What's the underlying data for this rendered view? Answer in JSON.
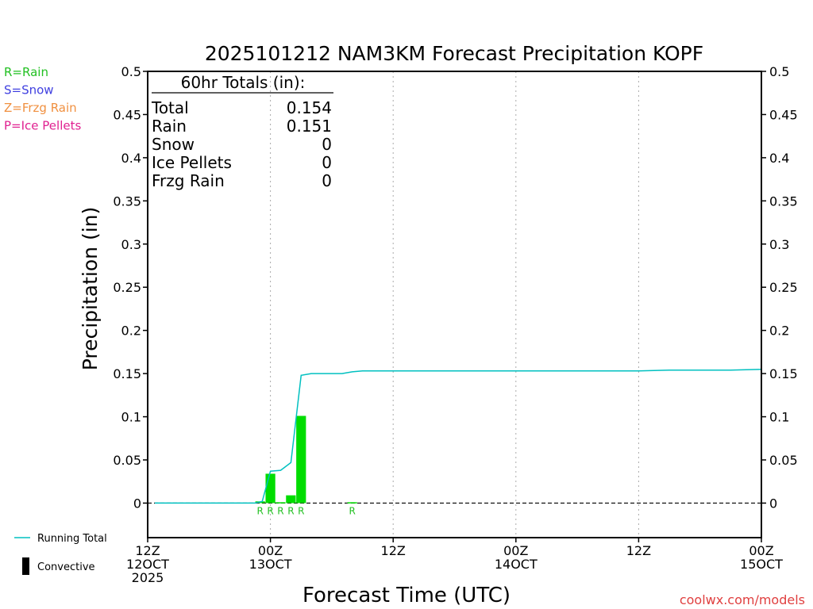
{
  "chart_data": {
    "type": "bar",
    "title": "2025101212 NAM3KM Forecast Precipitation KOPF",
    "xlabel": "Forecast Time (UTC)",
    "ylabel": "Precipitation (in)",
    "ylim": [
      -0.04,
      0.5
    ],
    "xlim_hours": [
      0,
      60
    ],
    "grid": "vertical dotted",
    "y_ticks": [
      {
        "v": 0.5,
        "label": "0.5"
      },
      {
        "v": 0.45,
        "label": "0.45"
      },
      {
        "v": 0.4,
        "label": "0.4"
      },
      {
        "v": 0.35,
        "label": "0.35"
      },
      {
        "v": 0.3,
        "label": "0.3"
      },
      {
        "v": 0.25,
        "label": "0.25"
      },
      {
        "v": 0.2,
        "label": "0.2"
      },
      {
        "v": 0.15,
        "label": "0.15"
      },
      {
        "v": 0.1,
        "label": "0.1"
      },
      {
        "v": 0.05,
        "label": "0.05"
      },
      {
        "v": 0,
        "label": "0"
      }
    ],
    "x_ticks": [
      {
        "h": 0,
        "lines": [
          "12Z",
          "12OCT",
          "2025"
        ]
      },
      {
        "h": 12,
        "lines": [
          "00Z",
          "13OCT"
        ]
      },
      {
        "h": 24,
        "lines": [
          "12Z"
        ]
      },
      {
        "h": 36,
        "lines": [
          "00Z",
          "14OCT"
        ]
      },
      {
        "h": 48,
        "lines": [
          "12Z"
        ]
      },
      {
        "h": 60,
        "lines": [
          "00Z",
          "15OCT"
        ]
      }
    ],
    "bars": [
      {
        "h": 11,
        "v": 0.002,
        "type": "R"
      },
      {
        "h": 12,
        "v": 0.034,
        "type": "R"
      },
      {
        "h": 13,
        "v": 0.001,
        "type": "R"
      },
      {
        "h": 14,
        "v": 0.009,
        "type": "R"
      },
      {
        "h": 15,
        "v": 0.101,
        "type": "R"
      },
      {
        "h": 20,
        "v": 0.001,
        "type": "R"
      }
    ],
    "running_total": {
      "name": "Running Total",
      "color": "#00c0c0",
      "points": [
        [
          0.7,
          0
        ],
        [
          10.5,
          0
        ],
        [
          11.2,
          0.002
        ],
        [
          12,
          0.037
        ],
        [
          13,
          0.038
        ],
        [
          14,
          0.047
        ],
        [
          15,
          0.148
        ],
        [
          16,
          0.15
        ],
        [
          19,
          0.15
        ],
        [
          20,
          0.152
        ],
        [
          21,
          0.153
        ],
        [
          30,
          0.153
        ],
        [
          40,
          0.153
        ],
        [
          48,
          0.153
        ],
        [
          51,
          0.154
        ],
        [
          57,
          0.154
        ],
        [
          60,
          0.155
        ]
      ]
    },
    "totals_box": {
      "heading": "60hr Totals (in):",
      "rows": [
        {
          "label": "Total",
          "value": "0.154"
        },
        {
          "label": "Rain",
          "value": "0.151"
        },
        {
          "label": "Snow",
          "value": "0"
        },
        {
          "label": "Ice Pellets",
          "value": "0"
        },
        {
          "label": "Frzg Rain",
          "value": "0"
        }
      ]
    },
    "type_legend": [
      {
        "text": "R=Rain",
        "color": "#22c022"
      },
      {
        "text": "S=Snow",
        "color": "#4040e0"
      },
      {
        "text": "Z=Frzg Rain",
        "color": "#f09040"
      },
      {
        "text": "P=Ice Pellets",
        "color": "#e02090"
      }
    ],
    "line_legend": [
      {
        "text": "Running Total",
        "color": "#00c0c0",
        "kind": "line"
      },
      {
        "text": "Convective",
        "color": "#000000",
        "kind": "bar"
      }
    ],
    "bar_color": "#00dd00",
    "bar_label_color": "#22c022",
    "credit": "coolwx.com/models",
    "credit_color": "#e04040"
  }
}
